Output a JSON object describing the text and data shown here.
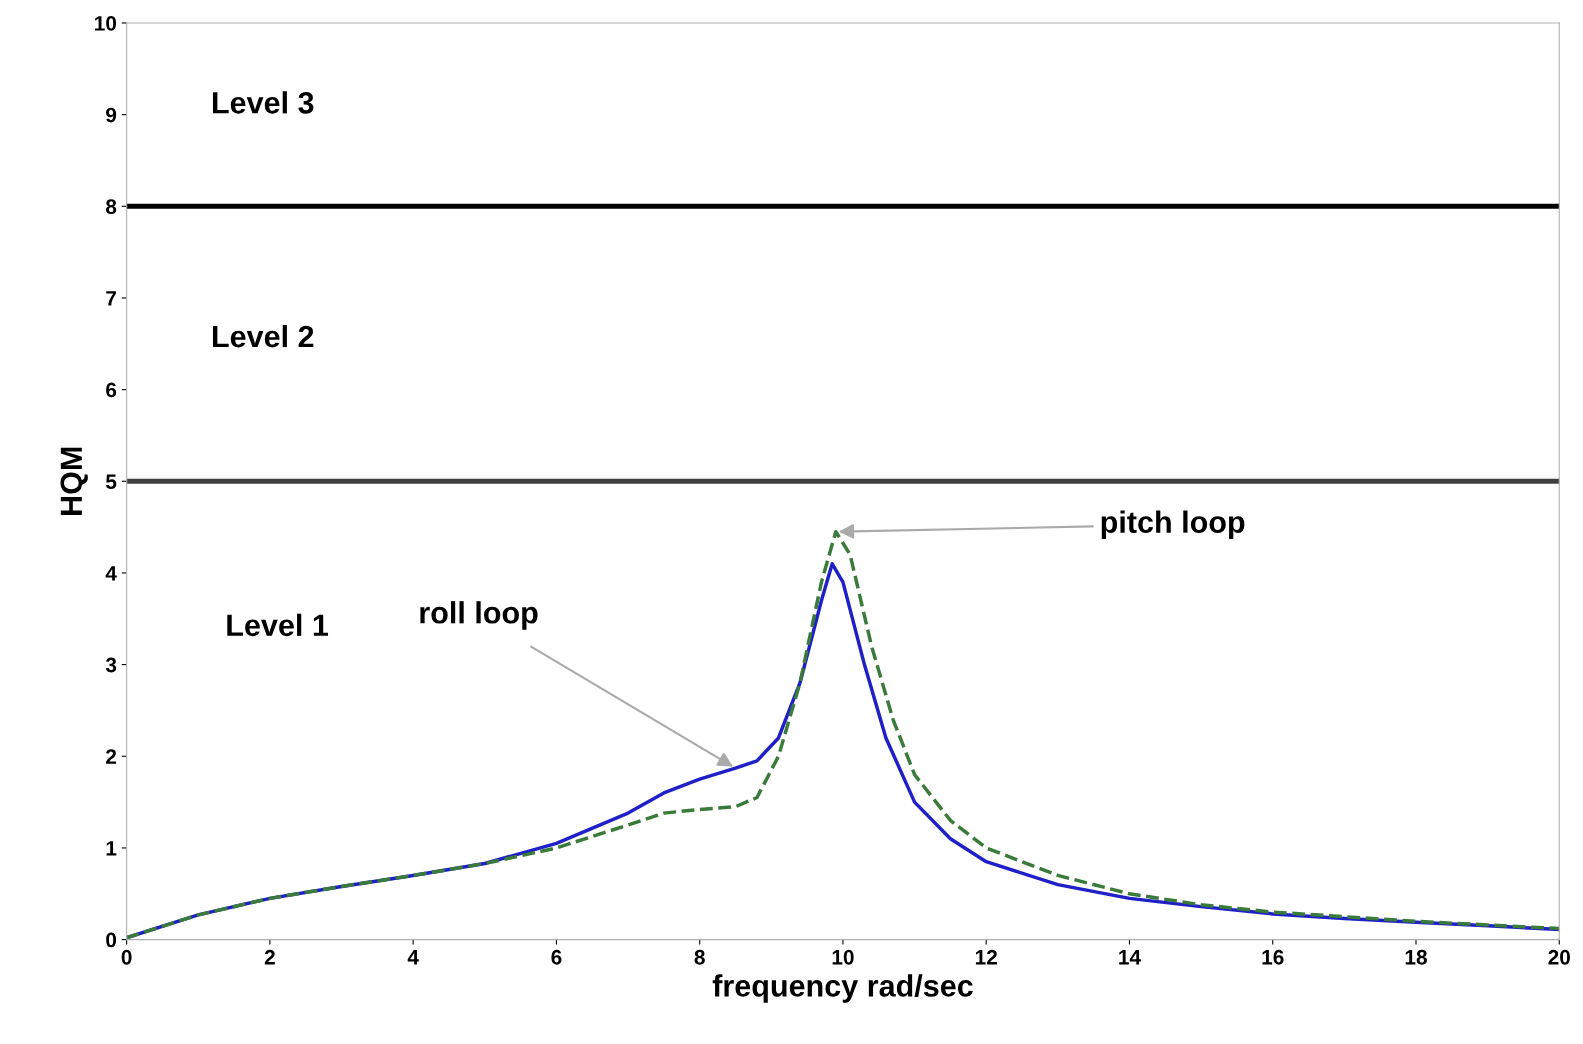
{
  "chart_data": {
    "type": "line",
    "xlabel": "frequency rad/sec",
    "ylabel": "HQM",
    "xlim": [
      0,
      20
    ],
    "ylim": [
      0,
      10
    ],
    "xticks": [
      0,
      2,
      4,
      6,
      8,
      10,
      12,
      14,
      16,
      18,
      20
    ],
    "yticks": [
      0,
      1,
      2,
      3,
      4,
      5,
      6,
      7,
      8,
      9,
      10
    ],
    "grid": false,
    "series": [
      {
        "color": "#2020c8",
        "line_style": "solid",
        "x": [
          0,
          1,
          2,
          3,
          4,
          5,
          6,
          7,
          7.5,
          8,
          8.5,
          8.8,
          9.1,
          9.4,
          9.7,
          9.85,
          10.0,
          10.3,
          10.6,
          11,
          11.5,
          12,
          13,
          14,
          15,
          16,
          17,
          18,
          19,
          20
        ],
        "values": [
          0.02,
          0.27,
          0.45,
          0.58,
          0.7,
          0.83,
          1.05,
          1.38,
          1.6,
          1.75,
          1.87,
          1.95,
          2.2,
          2.8,
          3.7,
          4.1,
          3.9,
          3.0,
          2.2,
          1.5,
          1.1,
          0.85,
          0.6,
          0.45,
          0.36,
          0.28,
          0.23,
          0.19,
          0.15,
          0.11
        ]
      },
      {
        "color": "#3a7a3a",
        "line_style": "dashed",
        "x": [
          0,
          1,
          2,
          3,
          4,
          5,
          6,
          7,
          7.5,
          8,
          8.5,
          8.8,
          9.1,
          9.4,
          9.7,
          9.9,
          10.1,
          10.4,
          10.7,
          11,
          11.5,
          12,
          13,
          14,
          15,
          16,
          17,
          18,
          19,
          20
        ],
        "values": [
          0.02,
          0.27,
          0.45,
          0.58,
          0.7,
          0.83,
          1.0,
          1.25,
          1.38,
          1.42,
          1.45,
          1.55,
          2.0,
          2.8,
          3.9,
          4.45,
          4.2,
          3.2,
          2.4,
          1.8,
          1.3,
          1.0,
          0.7,
          0.5,
          0.38,
          0.3,
          0.25,
          0.2,
          0.16,
          0.12
        ]
      }
    ],
    "ref_lines": [
      {
        "axis": "y",
        "value": 8,
        "color": "#000000"
      },
      {
        "axis": "y",
        "value": 5,
        "color": "#404040"
      }
    ],
    "annotations": [
      {
        "text": "roll loop",
        "x": 8.5,
        "y": 1.87
      },
      {
        "text": "pitch loop",
        "x": 9.9,
        "y": 4.45
      },
      "Level 3",
      "Level 2",
      "Level 1"
    ]
  }
}
